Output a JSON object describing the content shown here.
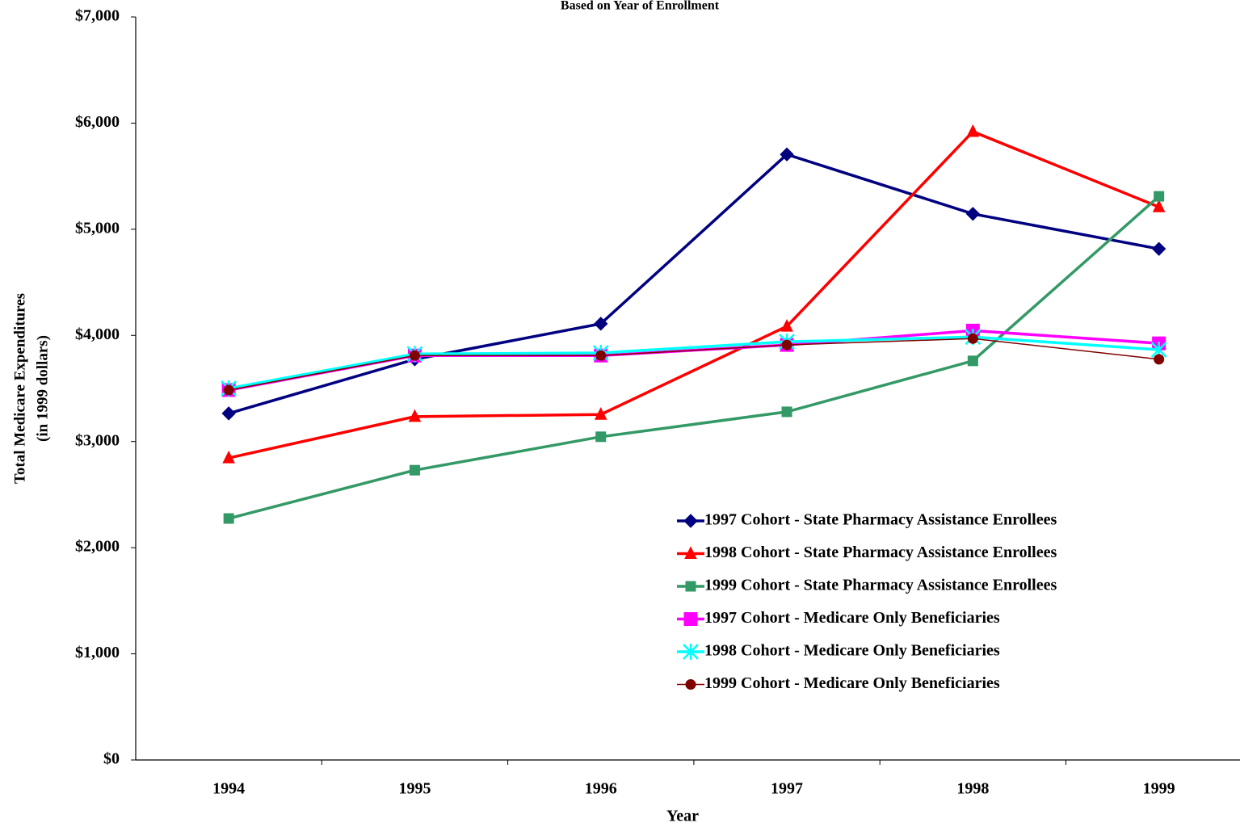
{
  "chart_data": {
    "type": "line",
    "subtitle": "Based on Year of Enrollment",
    "x_label": "Year",
    "y_label": [
      "Total Medicare Expenditures",
      "(in 1999 dollars)"
    ],
    "categories": [
      "1994",
      "1995",
      "1996",
      "1997",
      "1998",
      "1999"
    ],
    "ylim": [
      0,
      7000
    ],
    "yticks": [
      {
        "value": 0,
        "label": "$0"
      },
      {
        "value": 1000,
        "label": "$1,000"
      },
      {
        "value": 2000,
        "label": "$2,000"
      },
      {
        "value": 3000,
        "label": "$3,000"
      },
      {
        "value": 4000,
        "label": "$4,000"
      },
      {
        "value": 5000,
        "label": "$5,000"
      },
      {
        "value": 6000,
        "label": "$6,000"
      },
      {
        "value": 7000,
        "label": "$7,000"
      }
    ],
    "legend": "lower right",
    "series": [
      {
        "name": "1997 Cohort - State Pharmacy Assistance Enrollees",
        "color": "#000080",
        "marker": "diamond",
        "values": [
          3265,
          3775,
          4110,
          5705,
          5145,
          4815
        ]
      },
      {
        "name": "1998 Cohort - State Pharmacy Assistance Enrollees",
        "color": "#ff0000",
        "marker": "triangle",
        "values": [
          2845,
          3235,
          3255,
          4085,
          5920,
          5210
        ]
      },
      {
        "name": "1999 Cohort - State Pharmacy Assistance Enrollees",
        "color": "#339966",
        "marker": "square",
        "values": [
          2275,
          2730,
          3045,
          3280,
          3760,
          5310
        ]
      },
      {
        "name": "1997 Cohort - Medicare Only Beneficiaries",
        "color": "#ff00ff",
        "marker": "bigsquare",
        "values": [
          3485,
          3810,
          3810,
          3910,
          4045,
          3925
        ]
      },
      {
        "name": "1998 Cohort - Medicare Only Beneficiaries",
        "color": "#00ffff",
        "marker": "star",
        "values": [
          3500,
          3825,
          3835,
          3940,
          3985,
          3865
        ]
      },
      {
        "name": "1999 Cohort - Medicare Only Beneficiaries",
        "color": "#800000",
        "marker": "circle",
        "thin": true,
        "values": [
          3485,
          3810,
          3810,
          3910,
          3970,
          3775
        ]
      }
    ]
  }
}
